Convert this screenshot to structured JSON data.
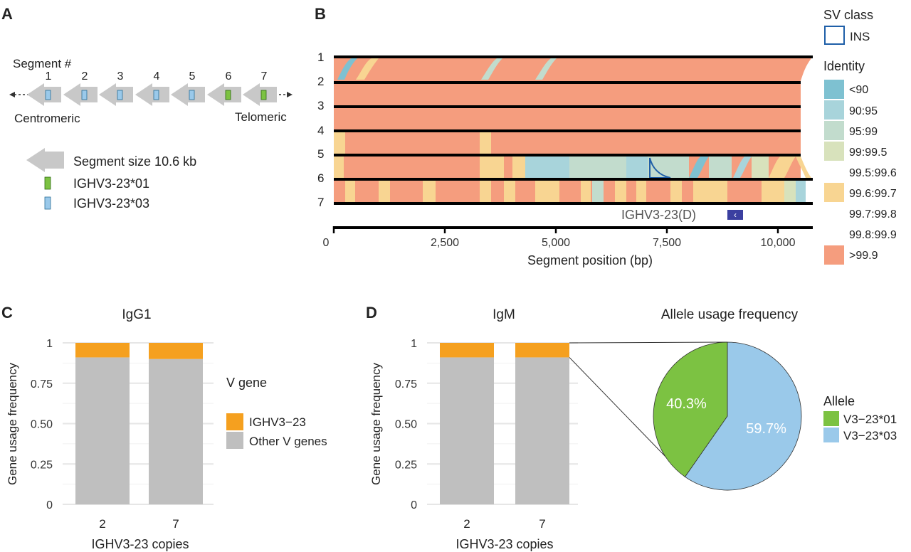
{
  "panelA": {
    "letter": "A",
    "segment_header": "Segment #",
    "segments": [
      {
        "num": "1",
        "allele": "IGHV3-23*03"
      },
      {
        "num": "2",
        "allele": "IGHV3-23*03"
      },
      {
        "num": "3",
        "allele": "IGHV3-23*03"
      },
      {
        "num": "4",
        "allele": "IGHV3-23*03"
      },
      {
        "num": "5",
        "allele": "IGHV3-23*03"
      },
      {
        "num": "6",
        "allele": "IGHV3-23*01"
      },
      {
        "num": "7",
        "allele": "IGHV3-23*01"
      }
    ],
    "centromeric": "Centromeric",
    "telomeric": "Telomeric",
    "legend": {
      "segment_size": "Segment size 10.6 kb",
      "allele01": "IGHV3-23*01",
      "allele03": "IGHV3-23*03"
    },
    "colors": {
      "allele01": "#7cc242",
      "allele03": "#9ac9ea",
      "arrow": "#c8c8c8"
    }
  },
  "panelB": {
    "letter": "B",
    "row_labels": [
      "1",
      "2",
      "3",
      "4",
      "5",
      "6",
      "7"
    ],
    "x_ticks": [
      "0",
      "2,500",
      "5,000",
      "7,500",
      "10,000"
    ],
    "x_label": "Segment position (bp)",
    "gene_label": "IGHV3-23(D)",
    "gene_arrow": "‹",
    "legend": {
      "sv_title": "SV class",
      "sv_ins": "INS",
      "identity_title": "Identity",
      "identity_bins": [
        {
          "label": "<90",
          "color": "#7ec1d1"
        },
        {
          "label": "90:95",
          "color": "#a8d4db"
        },
        {
          "label": "95:99",
          "color": "#c2dccd"
        },
        {
          "label": "99:99.5",
          "color": "#d8e2bc"
        },
        {
          "label": "99.5:99.6",
          "color": ""
        },
        {
          "label": "99.6:99.7",
          "color": "#f8d592"
        },
        {
          "label": "99.7:99.8",
          "color": ""
        },
        {
          "label": "99.8:99.9",
          "color": ""
        },
        {
          "label": ">99.9",
          "color": "#f59d7e"
        }
      ]
    }
  },
  "panelC": {
    "letter": "C",
    "title": "IgG1",
    "y_label": "Gene usage frequency",
    "x_label": "IGHV3-23 copies",
    "y_ticks": [
      "0",
      "0.25",
      "0.50",
      "0.75",
      "1"
    ],
    "legend_title": "V gene",
    "legend_items": [
      "IGHV3−23",
      "Other V genes"
    ]
  },
  "panelD": {
    "letter": "D",
    "title": "IgM",
    "y_label": "Gene usage frequency",
    "x_label": "IGHV3-23 copies",
    "y_ticks": [
      "0",
      "0.25",
      "0.50",
      "0.75",
      "1"
    ],
    "pie_title": "Allele usage frequency",
    "pie_legend_title": "Allele",
    "pie_legend_items": [
      "V3−23*01",
      "V3−23*03"
    ]
  },
  "colors": {
    "ighv": "#f5a01f",
    "other": "#bfbfbf",
    "grid": "#e6e6e6",
    "pie01": "#7cc242",
    "pie03": "#9ac9ea"
  },
  "chart_data": [
    {
      "type": "bar",
      "panel": "C",
      "title": "IgG1",
      "categories": [
        "2",
        "7"
      ],
      "series": [
        {
          "name": "Other V genes",
          "values": [
            0.91,
            0.9
          ]
        },
        {
          "name": "IGHV3−23",
          "values": [
            0.09,
            0.1
          ]
        }
      ],
      "stacked": true,
      "xlabel": "IGHV3-23 copies",
      "ylabel": "Gene usage frequency",
      "ylim": [
        0,
        1
      ],
      "grid": true,
      "legend": "right"
    },
    {
      "type": "bar",
      "panel": "D",
      "title": "IgM",
      "categories": [
        "2",
        "7"
      ],
      "series": [
        {
          "name": "Other V genes",
          "values": [
            0.91,
            0.91
          ]
        },
        {
          "name": "IGHV3−23",
          "values": [
            0.09,
            0.09
          ]
        }
      ],
      "stacked": true,
      "xlabel": "IGHV3-23 copies",
      "ylabel": "Gene usage frequency",
      "ylim": [
        0,
        1
      ],
      "grid": true
    },
    {
      "type": "pie",
      "panel": "D",
      "title": "Allele usage frequency",
      "categories": [
        "V3−23*01",
        "V3−23*03"
      ],
      "values": [
        40.3,
        59.7
      ],
      "value_labels": [
        "40.3%",
        "59.7%"
      ],
      "legend": "right"
    }
  ]
}
